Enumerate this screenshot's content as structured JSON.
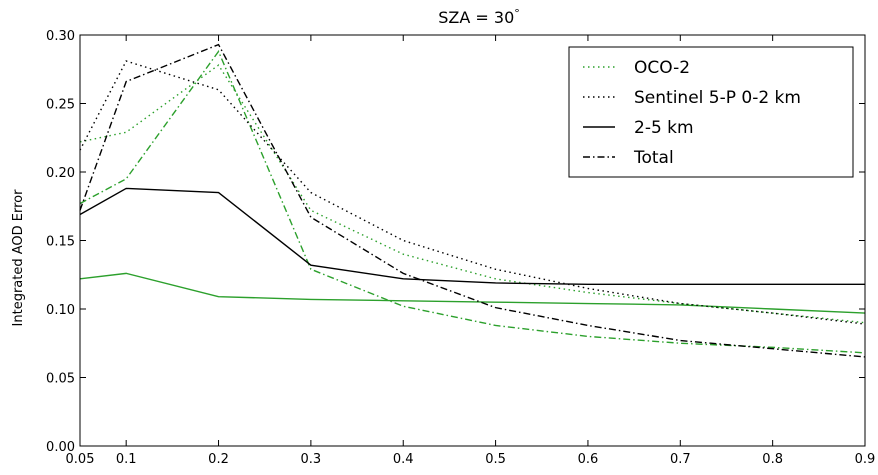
{
  "chart_data": {
    "type": "line",
    "title": "SZA = 30",
    "title_degree_symbol": "°",
    "xlabel": "",
    "ylabel": "Integrated AOD Error",
    "xlim": [
      0.05,
      0.9
    ],
    "ylim": [
      0.0,
      0.3
    ],
    "xticks": [
      0.05,
      0.1,
      0.2,
      0.3,
      0.4,
      0.5,
      0.6,
      0.7,
      0.8,
      0.9
    ],
    "xtick_labels": [
      "0.05",
      "0.1",
      "0.2",
      "0.3",
      "0.4",
      "0.5",
      "0.6",
      "0.7",
      "0.8",
      "0.9"
    ],
    "yticks": [
      0.0,
      0.05,
      0.1,
      0.15,
      0.2,
      0.25,
      0.3
    ],
    "ytick_labels": [
      "0.00",
      "0.05",
      "0.10",
      "0.15",
      "0.20",
      "0.25",
      "0.30"
    ],
    "grid": false,
    "legend_position": "top-right",
    "x": [
      0.05,
      0.1,
      0.2,
      0.3,
      0.4,
      0.5,
      0.6,
      0.7,
      0.8,
      0.9
    ],
    "colors": {
      "oco2": "#2ca02c",
      "sentinel": "#000000"
    },
    "legend": [
      {
        "label": "OCO-2",
        "style": "dotted",
        "color": "#2ca02c"
      },
      {
        "label": "Sentinel 5-P 0-2 km",
        "style": "dotted",
        "color": "#000000"
      },
      {
        "label": "2-5 km",
        "style": "solid",
        "color": "#000000"
      },
      {
        "label": "Total",
        "style": "dashdot",
        "color": "#000000"
      }
    ],
    "series": [
      {
        "group": "oco2",
        "style": "dotted",
        "values": [
          0.222,
          0.229,
          0.278,
          0.172,
          0.14,
          0.122,
          0.112,
          0.104,
          0.097,
          0.09
        ]
      },
      {
        "group": "oco2",
        "style": "solid",
        "values": [
          0.122,
          0.126,
          0.109,
          0.107,
          0.106,
          0.105,
          0.104,
          0.103,
          0.1,
          0.097
        ]
      },
      {
        "group": "oco2",
        "style": "dashdot",
        "values": [
          0.177,
          0.195,
          0.288,
          0.129,
          0.102,
          0.088,
          0.08,
          0.075,
          0.072,
          0.068
        ]
      },
      {
        "group": "sentinel",
        "style": "dotted",
        "values": [
          0.216,
          0.281,
          0.26,
          0.185,
          0.15,
          0.129,
          0.115,
          0.104,
          0.097,
          0.089
        ]
      },
      {
        "group": "sentinel",
        "style": "solid",
        "values": [
          0.169,
          0.188,
          0.185,
          0.132,
          0.122,
          0.119,
          0.118,
          0.118,
          0.118,
          0.118
        ]
      },
      {
        "group": "sentinel",
        "style": "dashdot",
        "values": [
          0.172,
          0.266,
          0.293,
          0.167,
          0.126,
          0.101,
          0.088,
          0.077,
          0.071,
          0.065
        ]
      }
    ]
  }
}
